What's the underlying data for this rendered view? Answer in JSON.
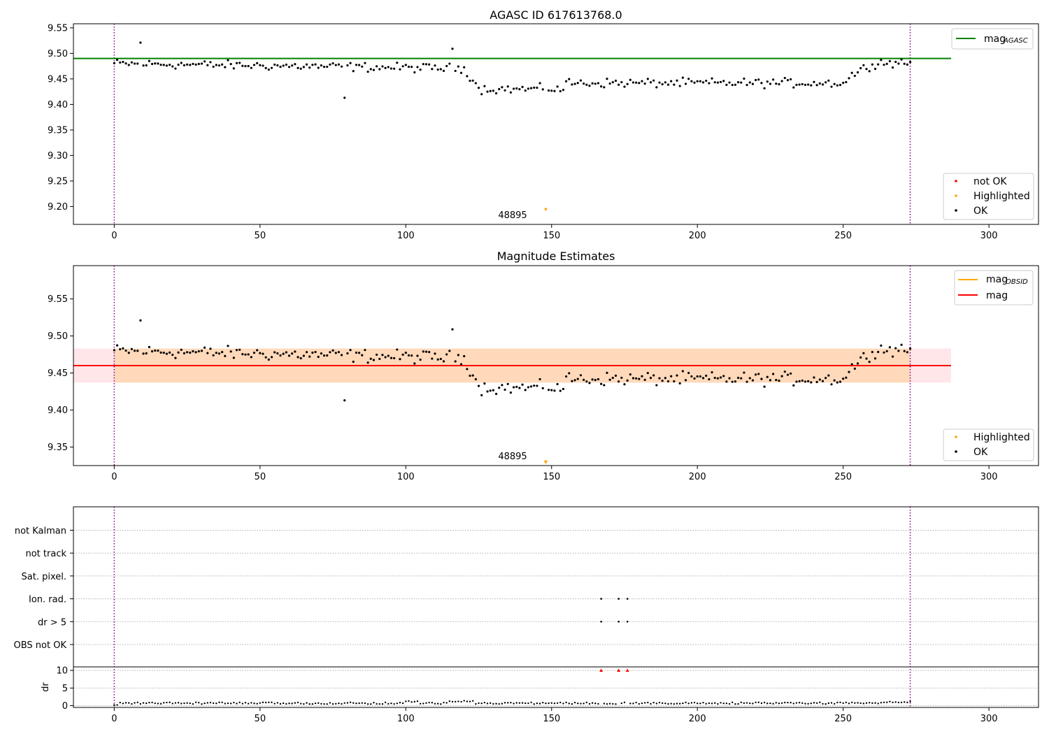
{
  "chart_data": [
    {
      "type": "scatter",
      "title": "AGASC ID 617613768.0",
      "xlim": [
        -14,
        317
      ],
      "ylim": [
        9.165,
        9.558
      ],
      "xticks": [
        0,
        50,
        100,
        150,
        200,
        250,
        300
      ],
      "yticks": [
        9.2,
        9.25,
        9.3,
        9.35,
        9.4,
        9.45,
        9.5,
        9.55
      ],
      "ytick_labels": [
        "9.20",
        "9.25",
        "9.30",
        "9.35",
        "9.40",
        "9.45",
        "9.50",
        "9.55"
      ],
      "vlines": [
        0,
        273
      ],
      "hline": {
        "name_main": "mag",
        "name_sub": "AGASC",
        "y": 9.49,
        "x_range": [
          -14,
          287
        ],
        "color": "#008000"
      },
      "highlighted_point": {
        "x": 148,
        "y": 9.195
      },
      "annotation": {
        "text": "48895",
        "x": 136,
        "y": 9.178
      },
      "legends": [
        {
          "position": "upper right",
          "entries": [
            {
              "label_main": "mag",
              "label_sub": "AGASC",
              "kind": "line",
              "color": "#008000"
            }
          ]
        },
        {
          "position": "lower right",
          "entries": [
            {
              "label": "not OK",
              "kind": "dot",
              "color": "#ff0000"
            },
            {
              "label": "Highlighted",
              "kind": "dot",
              "color": "#ffa500"
            },
            {
              "label": "OK",
              "kind": "dot",
              "color": "#000000"
            }
          ]
        }
      ],
      "grid": false
    },
    {
      "type": "scatter",
      "title": "Magnitude Estimates",
      "xlim": [
        -14,
        317
      ],
      "ylim": [
        9.325,
        9.595
      ],
      "xticks": [
        0,
        50,
        100,
        150,
        200,
        250,
        300
      ],
      "yticks": [
        9.35,
        9.4,
        9.45,
        9.5,
        9.55
      ],
      "ytick_labels": [
        "9.35",
        "9.40",
        "9.45",
        "9.50",
        "9.55"
      ],
      "vlines": [
        0,
        273
      ],
      "mag_line": {
        "y": 9.46,
        "x_range": [
          -14,
          287
        ],
        "color": "#ff0000"
      },
      "obsid_band": {
        "y_low": 9.437,
        "y_high": 9.483,
        "x_range": [
          0,
          273
        ],
        "color": "#ffa500"
      },
      "mag_band": {
        "y_low": 9.437,
        "y_high": 9.483,
        "x_range": [
          -14,
          287
        ],
        "color": "#ffb6c1"
      },
      "highlighted_marker": {
        "x": 148,
        "y": 9.329
      },
      "annotation": {
        "text": "48895",
        "x": 136,
        "y": 9.333
      },
      "legends": [
        {
          "position": "upper right",
          "entries": [
            {
              "label_main": "mag",
              "label_sub": "OBSID",
              "kind": "line",
              "color": "#ffa500"
            },
            {
              "label": "mag",
              "kind": "line",
              "color": "#ff0000"
            }
          ]
        },
        {
          "position": "lower right",
          "entries": [
            {
              "label": "Highlighted",
              "kind": "dot",
              "color": "#ffa500"
            },
            {
              "label": "OK",
              "kind": "dot",
              "color": "#000000"
            }
          ]
        }
      ],
      "grid": false
    },
    {
      "type": "scatter",
      "title": "",
      "xlim": [
        -14,
        317
      ],
      "xticks": [
        0,
        50,
        100,
        150,
        200,
        250,
        300
      ],
      "flag_rows": [
        "not Kalman",
        "not track",
        "Sat. pixel.",
        "Ion. rad.",
        "dr > 5",
        "OBS not OK"
      ],
      "flag_points": {
        "Ion. rad.": [
          167,
          173,
          176
        ],
        "dr > 5": [
          167,
          173,
          176
        ]
      },
      "dr_axis": {
        "ylabel": "dr",
        "ylim": [
          -0.5,
          11
        ],
        "yticks": [
          0,
          5,
          10
        ],
        "ytick_labels": [
          "0",
          "5",
          "10"
        ],
        "clipped_points": [
          167,
          173,
          176
        ]
      },
      "vlines": [
        0,
        273
      ],
      "grid": "horizontal dotted"
    }
  ]
}
